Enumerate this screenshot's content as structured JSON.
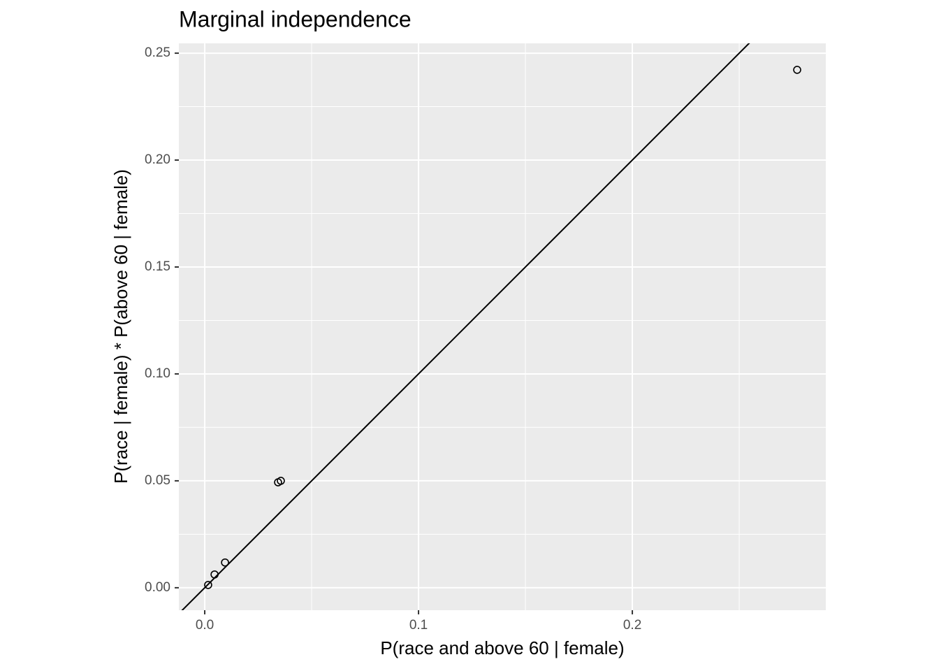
{
  "chart_data": {
    "type": "scatter",
    "title": "Marginal independence",
    "x_label": "P(race and above 60 | female)",
    "y_label": "P(race | female) * P(above 60 | female)",
    "x": [
      0.2771,
      0.0356,
      0.0343,
      0.0095,
      0.0046,
      0.0016
    ],
    "values": [
      0.2422,
      0.05,
      0.0493,
      0.0118,
      0.0062,
      0.0013
    ],
    "color": "#000000",
    "xlim": [
      -0.0121,
      0.2905
    ],
    "ylim": [
      -0.0105,
      0.2546
    ],
    "xticks": [
      {
        "value": 0,
        "label": "0.0"
      },
      {
        "value": 0.1,
        "label": "0.1"
      },
      {
        "value": 0.2,
        "label": "0.2"
      }
    ],
    "yticks": [
      {
        "value": 0,
        "label": "0.00"
      },
      {
        "value": 0.05,
        "label": "0.05"
      },
      {
        "value": 0.1,
        "label": "0.10"
      },
      {
        "value": 0.15,
        "label": "0.15"
      },
      {
        "value": 0.2,
        "label": "0.20"
      },
      {
        "value": 0.25,
        "label": "0.25"
      }
    ],
    "x_minor_grid": [
      0.05,
      0.15,
      0.25
    ],
    "y_minor_grid": [
      0.025,
      0.075,
      0.125,
      0.175,
      0.225
    ],
    "reference_line": {
      "slope": 1,
      "intercept": 0
    },
    "grid": true
  }
}
